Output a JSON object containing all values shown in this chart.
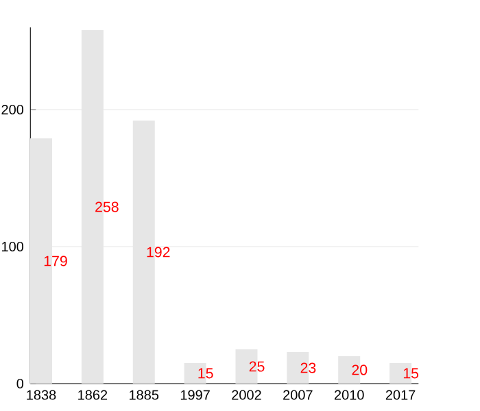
{
  "chart_data": {
    "type": "bar",
    "categories": [
      "1838",
      "1862",
      "1885",
      "1997",
      "2002",
      "2007",
      "2010",
      "2017"
    ],
    "values": [
      179,
      258,
      192,
      15,
      25,
      23,
      20,
      15
    ],
    "color": "#e6e6e6",
    "ylim": [
      0,
      260
    ],
    "yticks": [
      0,
      100,
      200
    ],
    "grid": "y",
    "data_labels": true
  }
}
